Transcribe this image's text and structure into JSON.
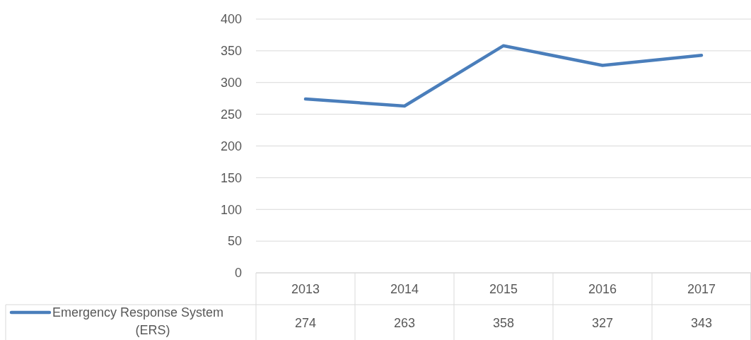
{
  "chart_data": {
    "type": "line",
    "categories": [
      "2013",
      "2014",
      "2015",
      "2016",
      "2017"
    ],
    "series": [
      {
        "name": "Emergency Response System (ERS)",
        "color": "#4a7ebb",
        "values": [
          274,
          263,
          358,
          327,
          343
        ]
      }
    ],
    "ylim": [
      0,
      400
    ],
    "yticks": [
      0,
      50,
      100,
      150,
      200,
      250,
      300,
      350,
      400
    ],
    "grid": "y",
    "legend": "bottom",
    "data_labels": true,
    "marker": "none",
    "line_style": "solid"
  }
}
